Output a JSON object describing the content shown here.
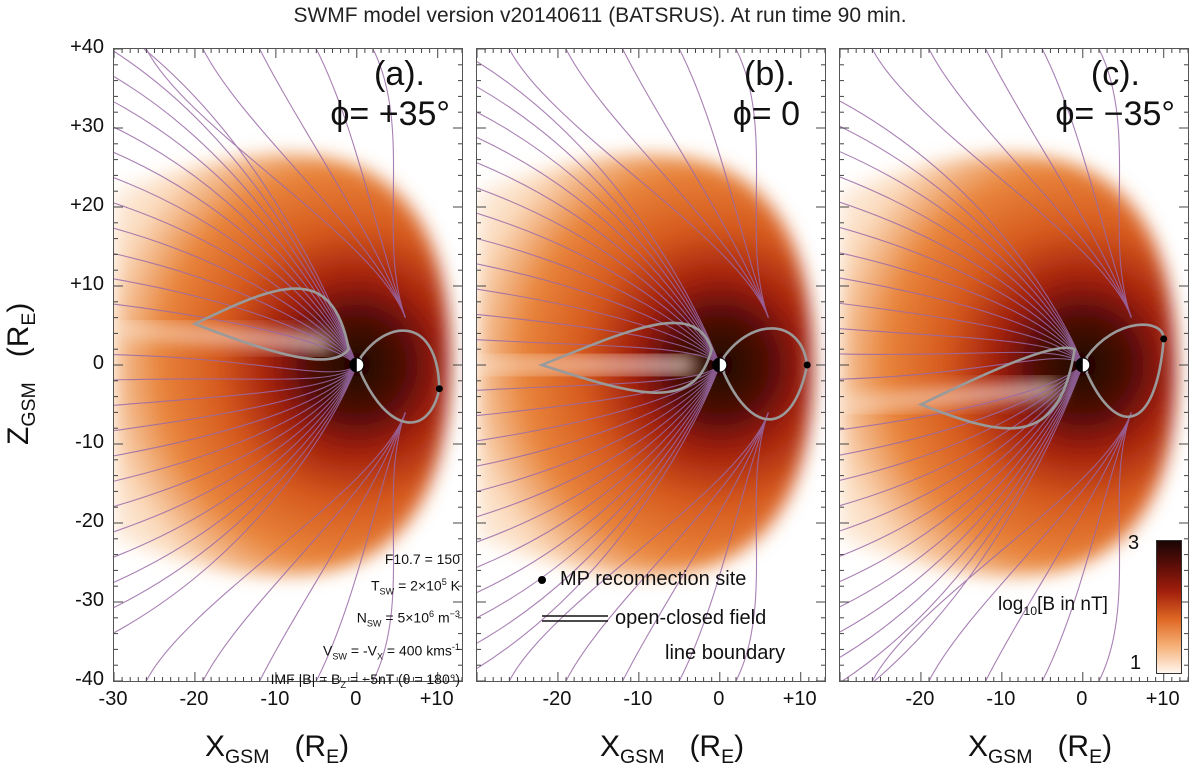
{
  "title": "SWMF model version v20140611 (BATSRUS).  At run time 90 min.",
  "chart_data": {
    "type": "heatmap",
    "title": "SWMF model version v20140611 (BATSRUS).  At run time 90 min.",
    "xlabel": "X_GSM (R_E)",
    "ylabel": "Z_GSM (R_E)",
    "ylim": [
      -40,
      40
    ],
    "y_ticks": [
      "+40",
      "+30",
      "+20",
      "+10",
      "0",
      "-10",
      "-20",
      "-30",
      "-40"
    ],
    "colorbar": {
      "label": "log10[B in nT]",
      "min": 1,
      "max": 3,
      "min_label": "1",
      "max_label": "3"
    },
    "panels": [
      {
        "label": "(a).",
        "phi": "ϕ= +35°",
        "xlim": [
          -30,
          13
        ],
        "x_ticks": [
          "-30",
          "-20",
          "-10",
          "0",
          "+10"
        ],
        "reconnection_site": [
          10.2,
          -3.0
        ]
      },
      {
        "label": "(b).",
        "phi": "ϕ= 0",
        "xlim": [
          -30,
          13
        ],
        "x_ticks": [
          "-20",
          "-10",
          "0",
          "+10"
        ],
        "reconnection_site": [
          10.8,
          0.0
        ]
      },
      {
        "label": "(c).",
        "phi": "ϕ= −35°",
        "xlim": [
          -30,
          13
        ],
        "x_ticks": [
          "-20",
          "-10",
          "0",
          "+10"
        ],
        "reconnection_site": [
          10.0,
          3.3
        ]
      }
    ]
  },
  "params": {
    "f107": "F10.7 = 150",
    "tsw": "T<sub>SW</sub> = 2×10<sup>5</sup> K",
    "nsw": "N<sub>SW</sub> = 5×10<sup>6</sup> m<sup>−3</sup>",
    "vsw": "V<sub>SW</sub> = -V<sub>X</sub> = 400 kms<sup>-1</sup>",
    "imf": "IMF |B| = B<sub>Z</sub> = −5nT (θ = 180°)"
  },
  "legend": {
    "dot_label": "MP reconnection site",
    "line_label_1": "open-closed field",
    "line_label_2": "line boundary"
  },
  "colors": {
    "dark": "#1a0505",
    "mid": "#a01e0c",
    "orange": "#e8843a",
    "light": "#fbdcbf",
    "field": "#9a6aa8",
    "boundary": "#9a9a9a"
  }
}
